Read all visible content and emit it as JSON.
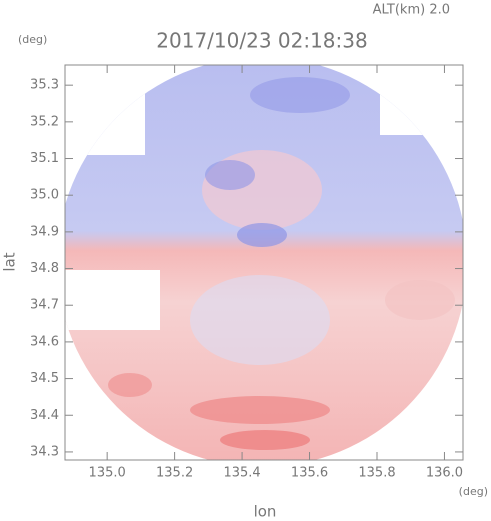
{
  "chart_data": {
    "type": "radar-map",
    "title": "2017/10/23 02:18:38",
    "subtitle": "ALT(km) 2.0",
    "y_unit": "(deg)",
    "x_unit": "(deg)",
    "xlabel": "lon",
    "ylabel": "lat",
    "xlim": [
      134.875,
      136.055
    ],
    "ylim": [
      34.278,
      35.355
    ],
    "xticks": [
      {
        "value": 135,
        "label": "135.0"
      },
      135.2,
      135.4,
      135.6,
      135.8,
      {
        "value": 136,
        "label": "136.0"
      }
    ],
    "yticks": [
      34.3,
      34.4,
      34.5,
      34.6,
      34.7,
      34.8,
      34.9,
      {
        "value": 35,
        "label": "35.0"
      },
      35.1,
      35.2,
      35.3
    ]
  }
}
